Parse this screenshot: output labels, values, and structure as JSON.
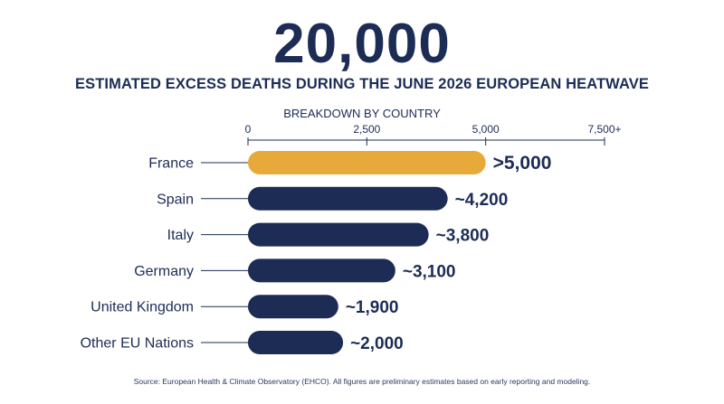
{
  "headline": "20,000",
  "subtitle": "ESTIMATED EXCESS DEATHS DURING THE JUNE 2026 EUROPEAN HEATWAVE",
  "source": "Source: European Health & Climate Observatory (EHCO). All figures are preliminary estimates based on early reporting and modeling.",
  "colors": {
    "highlight": "#e8a93b",
    "bar": "#1c2c55",
    "text": "#1c2c55",
    "leader": "#1c2c55"
  },
  "chart_data": {
    "type": "bar",
    "orientation": "horizontal",
    "title": "BREAKDOWN BY COUNTRY",
    "categories": [
      "France",
      "Spain",
      "Italy",
      "Germany",
      "United Kingdom",
      "Other EU Nations"
    ],
    "values": [
      5000,
      4200,
      3800,
      3100,
      1900,
      2000
    ],
    "value_labels": [
      ">5,000",
      "~4,200",
      "~3,800",
      "~3,100",
      "~1,900",
      "~2,000"
    ],
    "highlight_index": 0,
    "xlim": [
      0,
      7500
    ],
    "xticks": [
      0,
      2500,
      5000,
      7500
    ],
    "xtick_labels": [
      "0",
      "2,500",
      "5,000",
      "7,500+"
    ],
    "grid": false,
    "legend": "none"
  }
}
